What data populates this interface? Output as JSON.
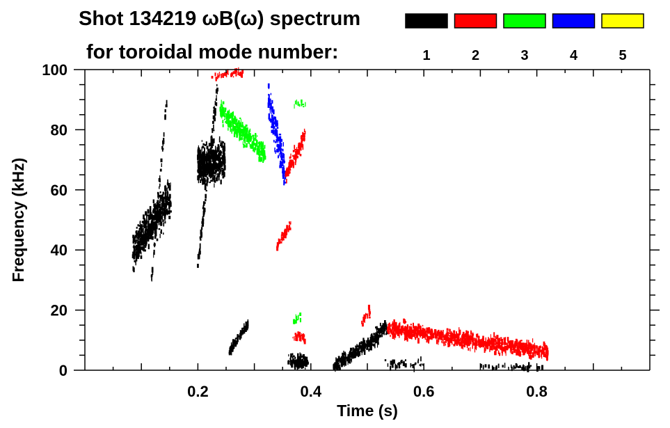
{
  "chart_data": {
    "type": "heatmap",
    "title_line1": "Shot 134219 ωB(ω) spectrum",
    "title_line2": "for toroidal mode number:",
    "xlabel": "Time (s)",
    "ylabel": "Frequency (kHz)",
    "xlim": [
      0,
      1.0
    ],
    "ylim": [
      0,
      100
    ],
    "xticks": [
      0.2,
      0.4,
      0.6,
      0.8
    ],
    "xtick_labels": [
      "0.2",
      "0.4",
      "0.6",
      "0.8"
    ],
    "yticks": [
      0,
      20,
      40,
      60,
      80,
      100
    ],
    "ytick_labels": [
      "0",
      "20",
      "40",
      "60",
      "80",
      "100"
    ],
    "legend": [
      {
        "label": "1",
        "color": "#000000"
      },
      {
        "label": "2",
        "color": "#ff0000"
      },
      {
        "label": "3",
        "color": "#00ff00"
      },
      {
        "label": "4",
        "color": "#0000ff"
      },
      {
        "label": "5",
        "color": "#ffff00"
      }
    ],
    "regions": [
      {
        "mode": 1,
        "t": [
          0.085,
          0.152
        ],
        "f_start": 40,
        "f_end": 57,
        "spread": 9,
        "n": 520
      },
      {
        "mode": 1,
        "t": [
          0.118,
          0.145
        ],
        "f_start": 30,
        "f_end": 90,
        "spread": 3,
        "n": 50
      },
      {
        "mode": 1,
        "t": [
          0.2,
          0.248
        ],
        "f_start": 68,
        "f_end": 70,
        "spread": 9,
        "n": 520
      },
      {
        "mode": 1,
        "t": [
          0.2,
          0.235
        ],
        "f_start": 35,
        "f_end": 95,
        "spread": 4,
        "n": 90
      },
      {
        "mode": 3,
        "t": [
          0.24,
          0.32
        ],
        "f_start": 86,
        "f_end": 72,
        "spread": 5,
        "n": 320
      },
      {
        "mode": 4,
        "t": [
          0.325,
          0.355
        ],
        "f_start": 90,
        "f_end": 65,
        "spread": 9,
        "n": 150
      },
      {
        "mode": 2,
        "t": [
          0.355,
          0.39
        ],
        "f_start": 65,
        "f_end": 78,
        "spread": 4,
        "n": 120
      },
      {
        "mode": 2,
        "t": [
          0.34,
          0.365
        ],
        "f_start": 41,
        "f_end": 49,
        "spread": 2,
        "n": 50
      },
      {
        "mode": 2,
        "t": [
          0.225,
          0.28
        ],
        "f_start": 98,
        "f_end": 99,
        "spread": 1.5,
        "n": 40
      },
      {
        "mode": 3,
        "t": [
          0.37,
          0.395
        ],
        "f_start": 88,
        "f_end": 89,
        "spread": 1.5,
        "n": 12
      },
      {
        "mode": 1,
        "t": [
          0.255,
          0.29
        ],
        "f_start": 6,
        "f_end": 16,
        "spread": 2,
        "n": 90
      },
      {
        "mode": 1,
        "t": [
          0.36,
          0.395
        ],
        "f_start": 3,
        "f_end": 3,
        "spread": 3,
        "n": 110
      },
      {
        "mode": 2,
        "t": [
          0.365,
          0.39
        ],
        "f_start": 11,
        "f_end": 11,
        "spread": 2,
        "n": 35
      },
      {
        "mode": 3,
        "t": [
          0.37,
          0.385
        ],
        "f_start": 17,
        "f_end": 18,
        "spread": 2,
        "n": 12
      },
      {
        "mode": 1,
        "t": [
          0.44,
          0.52
        ],
        "f_start": 1,
        "f_end": 11,
        "spread": 3,
        "n": 280
      },
      {
        "mode": 1,
        "t": [
          0.515,
          0.535
        ],
        "f_start": 12,
        "f_end": 14,
        "spread": 3,
        "n": 60
      },
      {
        "mode": 2,
        "t": [
          0.49,
          0.505
        ],
        "f_start": 16,
        "f_end": 20,
        "spread": 3,
        "n": 20
      },
      {
        "mode": 2,
        "t": [
          0.535,
          0.82
        ],
        "f_start": 14,
        "f_end": 6,
        "spread": 3.5,
        "n": 900
      },
      {
        "mode": 1,
        "t": [
          0.53,
          0.6
        ],
        "f_start": 2,
        "f_end": 2,
        "spread": 2,
        "n": 40
      },
      {
        "mode": 1,
        "t": [
          0.7,
          0.81
        ],
        "f_start": 1,
        "f_end": 1,
        "spread": 1.2,
        "n": 40
      }
    ]
  }
}
